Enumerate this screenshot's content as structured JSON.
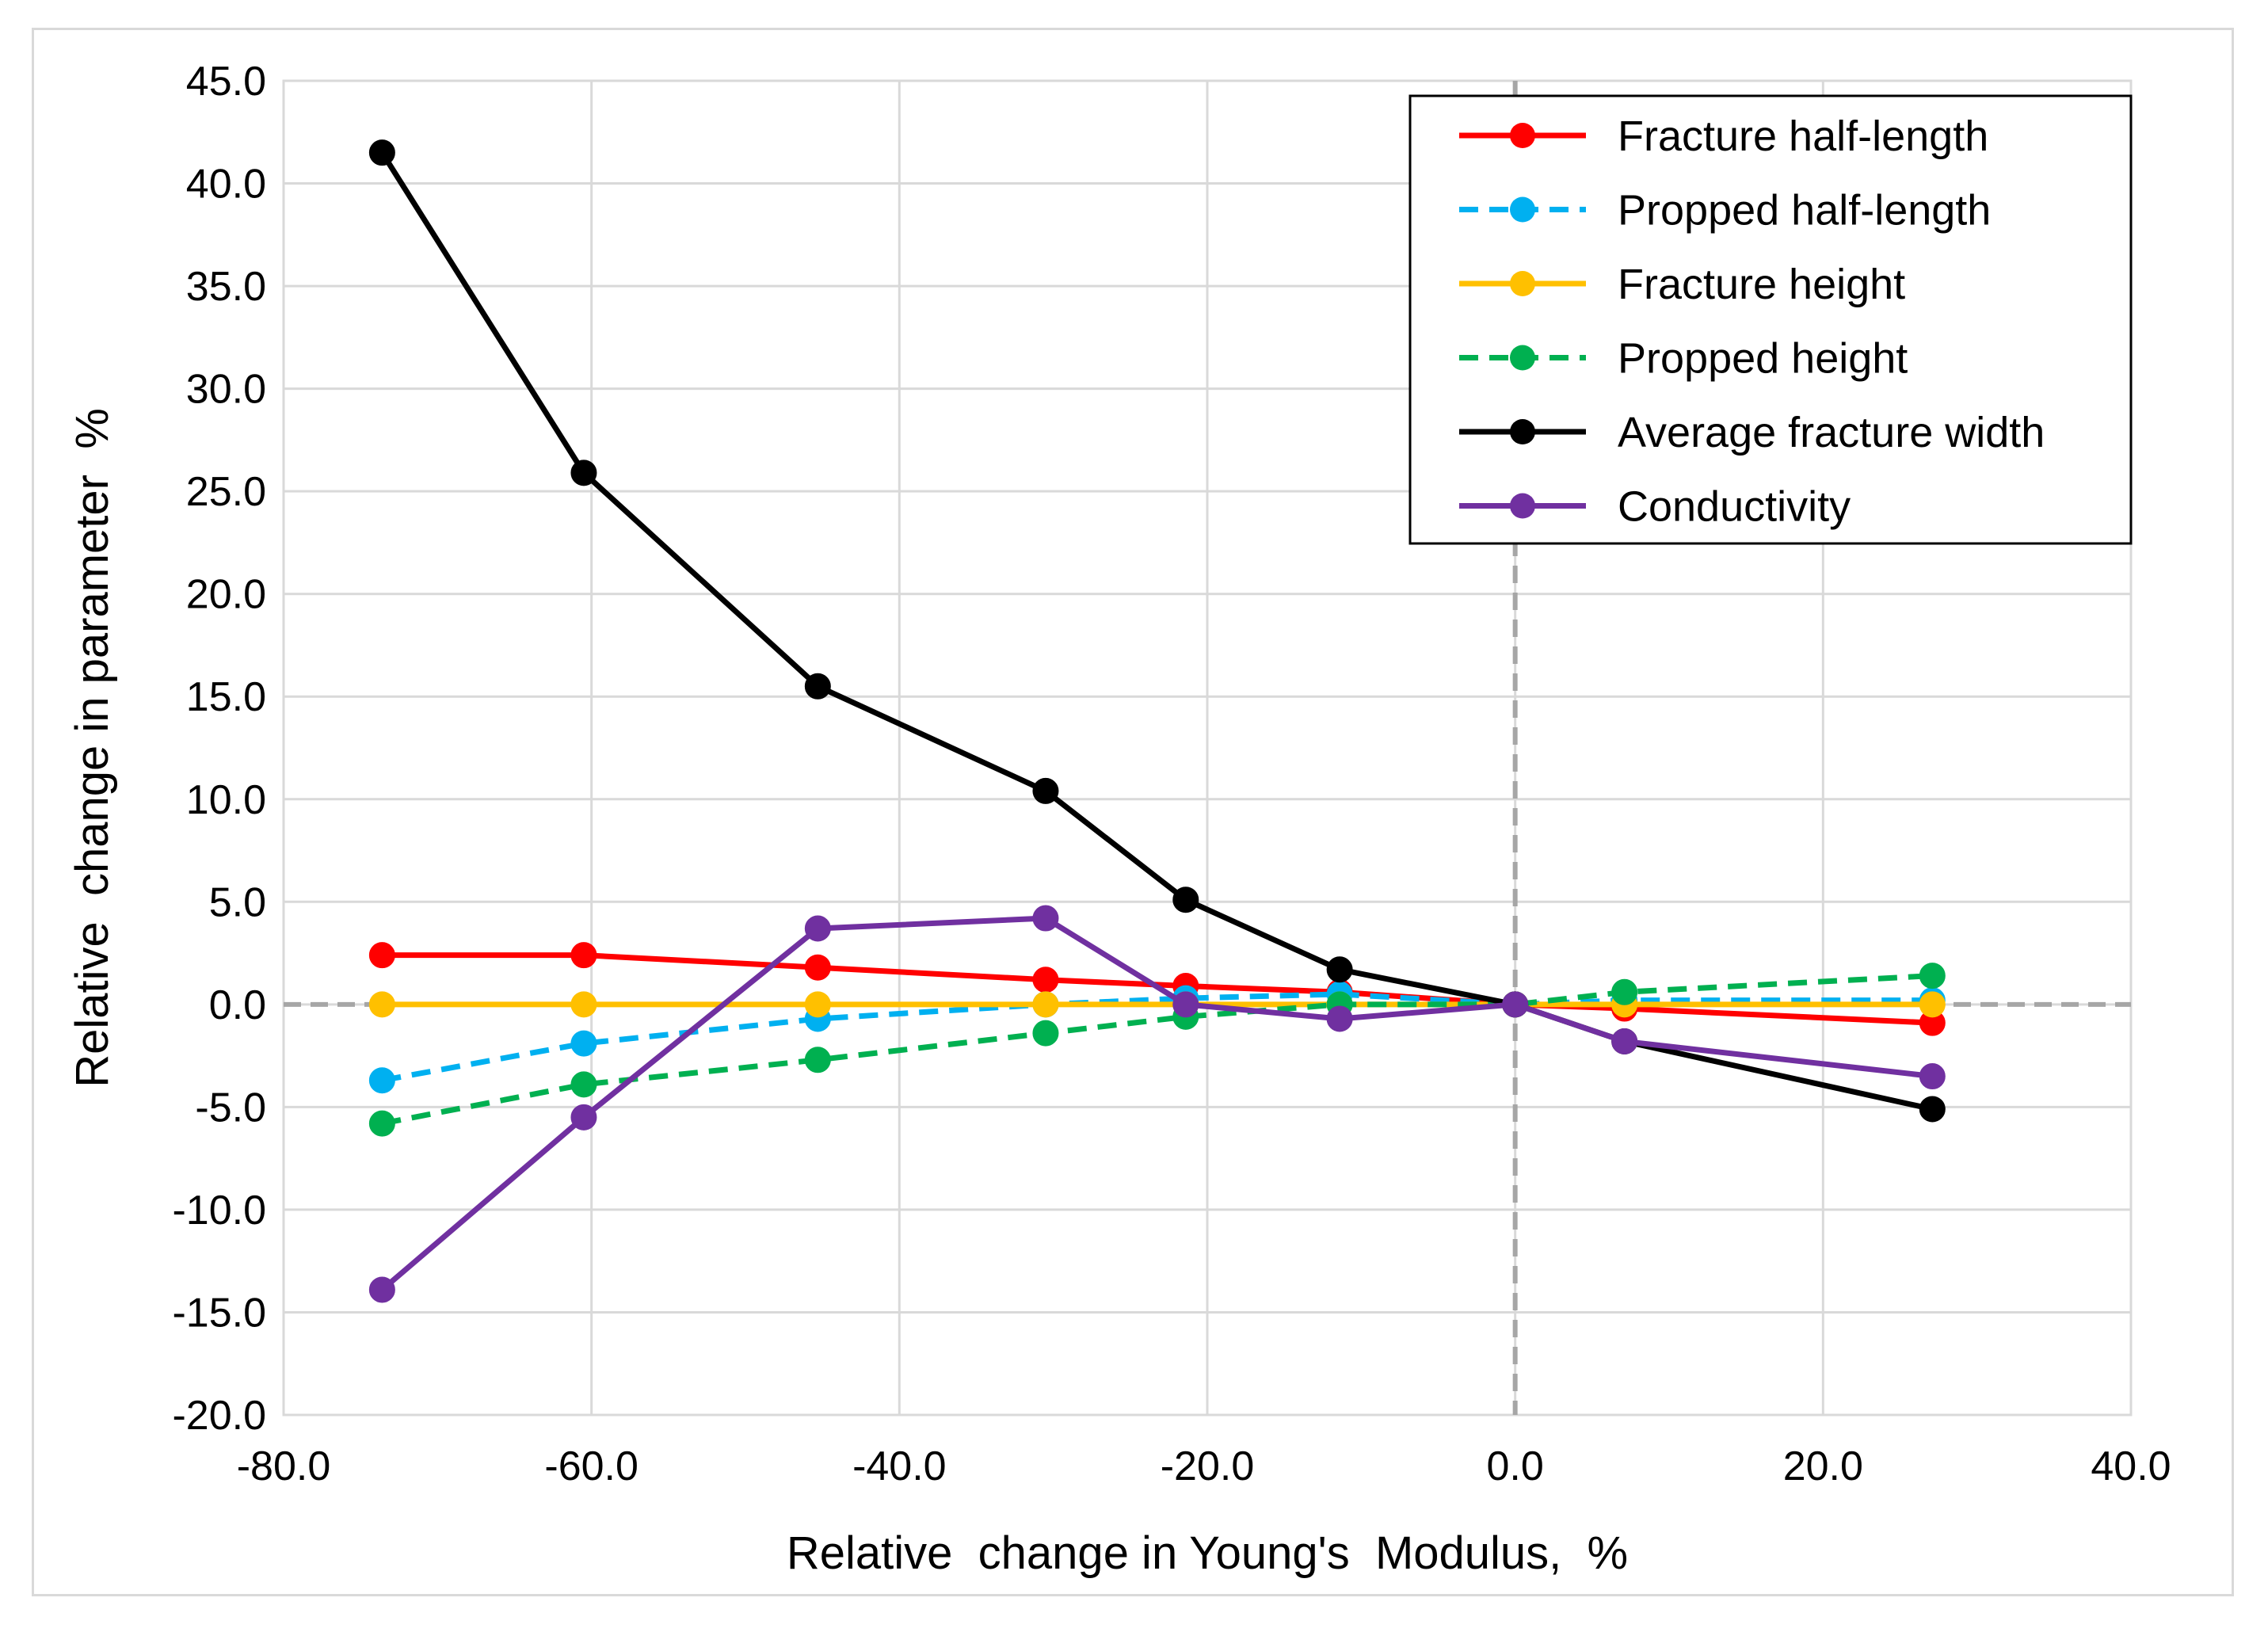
{
  "chart_data": {
    "type": "line",
    "title": "",
    "xlabel": "Relative  change in Young's  Modulus,  %",
    "ylabel": "Relative  change in parameter  %",
    "xlim": [
      -80,
      40
    ],
    "ylim": [
      -20,
      45
    ],
    "xticks": [
      -80,
      -60,
      -40,
      -20,
      0,
      20,
      40
    ],
    "yticks": [
      -20,
      -15,
      -10,
      -5,
      0,
      5,
      10,
      15,
      20,
      25,
      30,
      35,
      40,
      45
    ],
    "xtick_labels": [
      "-80.0",
      "-60.0",
      "-40.0",
      "-20.0",
      "0.0",
      "20.0",
      "40.0"
    ],
    "ytick_labels": [
      "-20.0",
      "-15.0",
      "-10.0",
      "-5.0",
      "0.0",
      "5.0",
      "10.0",
      "15.0",
      "20.0",
      "25.0",
      "30.0",
      "35.0",
      "40.0",
      "45.0"
    ],
    "grid": true,
    "legend_position": "top-right",
    "reference_lines": {
      "x": 0,
      "y": 0,
      "color": "#a6a6a6",
      "style": "dashed"
    },
    "x": [
      -73.6,
      -60.5,
      -45.3,
      -30.5,
      -21.4,
      -11.4,
      0.0,
      7.1,
      27.1
    ],
    "series": [
      {
        "name": "Fracture half-length",
        "color": "#ff0000",
        "dashed": false,
        "values": [
          2.4,
          2.4,
          1.8,
          1.2,
          0.9,
          0.6,
          0.0,
          -0.2,
          -0.9
        ]
      },
      {
        "name": "Propped half-length",
        "color": "#00b0f0",
        "dashed": true,
        "values": [
          -3.7,
          -1.9,
          -0.7,
          0.0,
          0.3,
          0.5,
          0.0,
          0.2,
          0.2
        ]
      },
      {
        "name": "Fracture height",
        "color": "#ffc000",
        "dashed": false,
        "values": [
          0.0,
          0.0,
          0.0,
          0.0,
          0.0,
          0.0,
          0.0,
          0.0,
          0.0
        ]
      },
      {
        "name": "Propped height",
        "color": "#00b050",
        "dashed": true,
        "values": [
          -5.8,
          -3.9,
          -2.7,
          -1.4,
          -0.6,
          0.0,
          0.0,
          0.6,
          1.4
        ]
      },
      {
        "name": "Average fracture width",
        "color": "#000000",
        "dashed": false,
        "values": [
          41.5,
          25.9,
          15.5,
          10.4,
          5.1,
          1.7,
          0.0,
          -1.8,
          -5.1
        ]
      },
      {
        "name": "Conductivity",
        "color": "#7030a0",
        "dashed": false,
        "values": [
          -13.9,
          -5.5,
          3.7,
          4.2,
          0.0,
          -0.7,
          0.0,
          -1.8,
          -3.5
        ]
      }
    ]
  }
}
